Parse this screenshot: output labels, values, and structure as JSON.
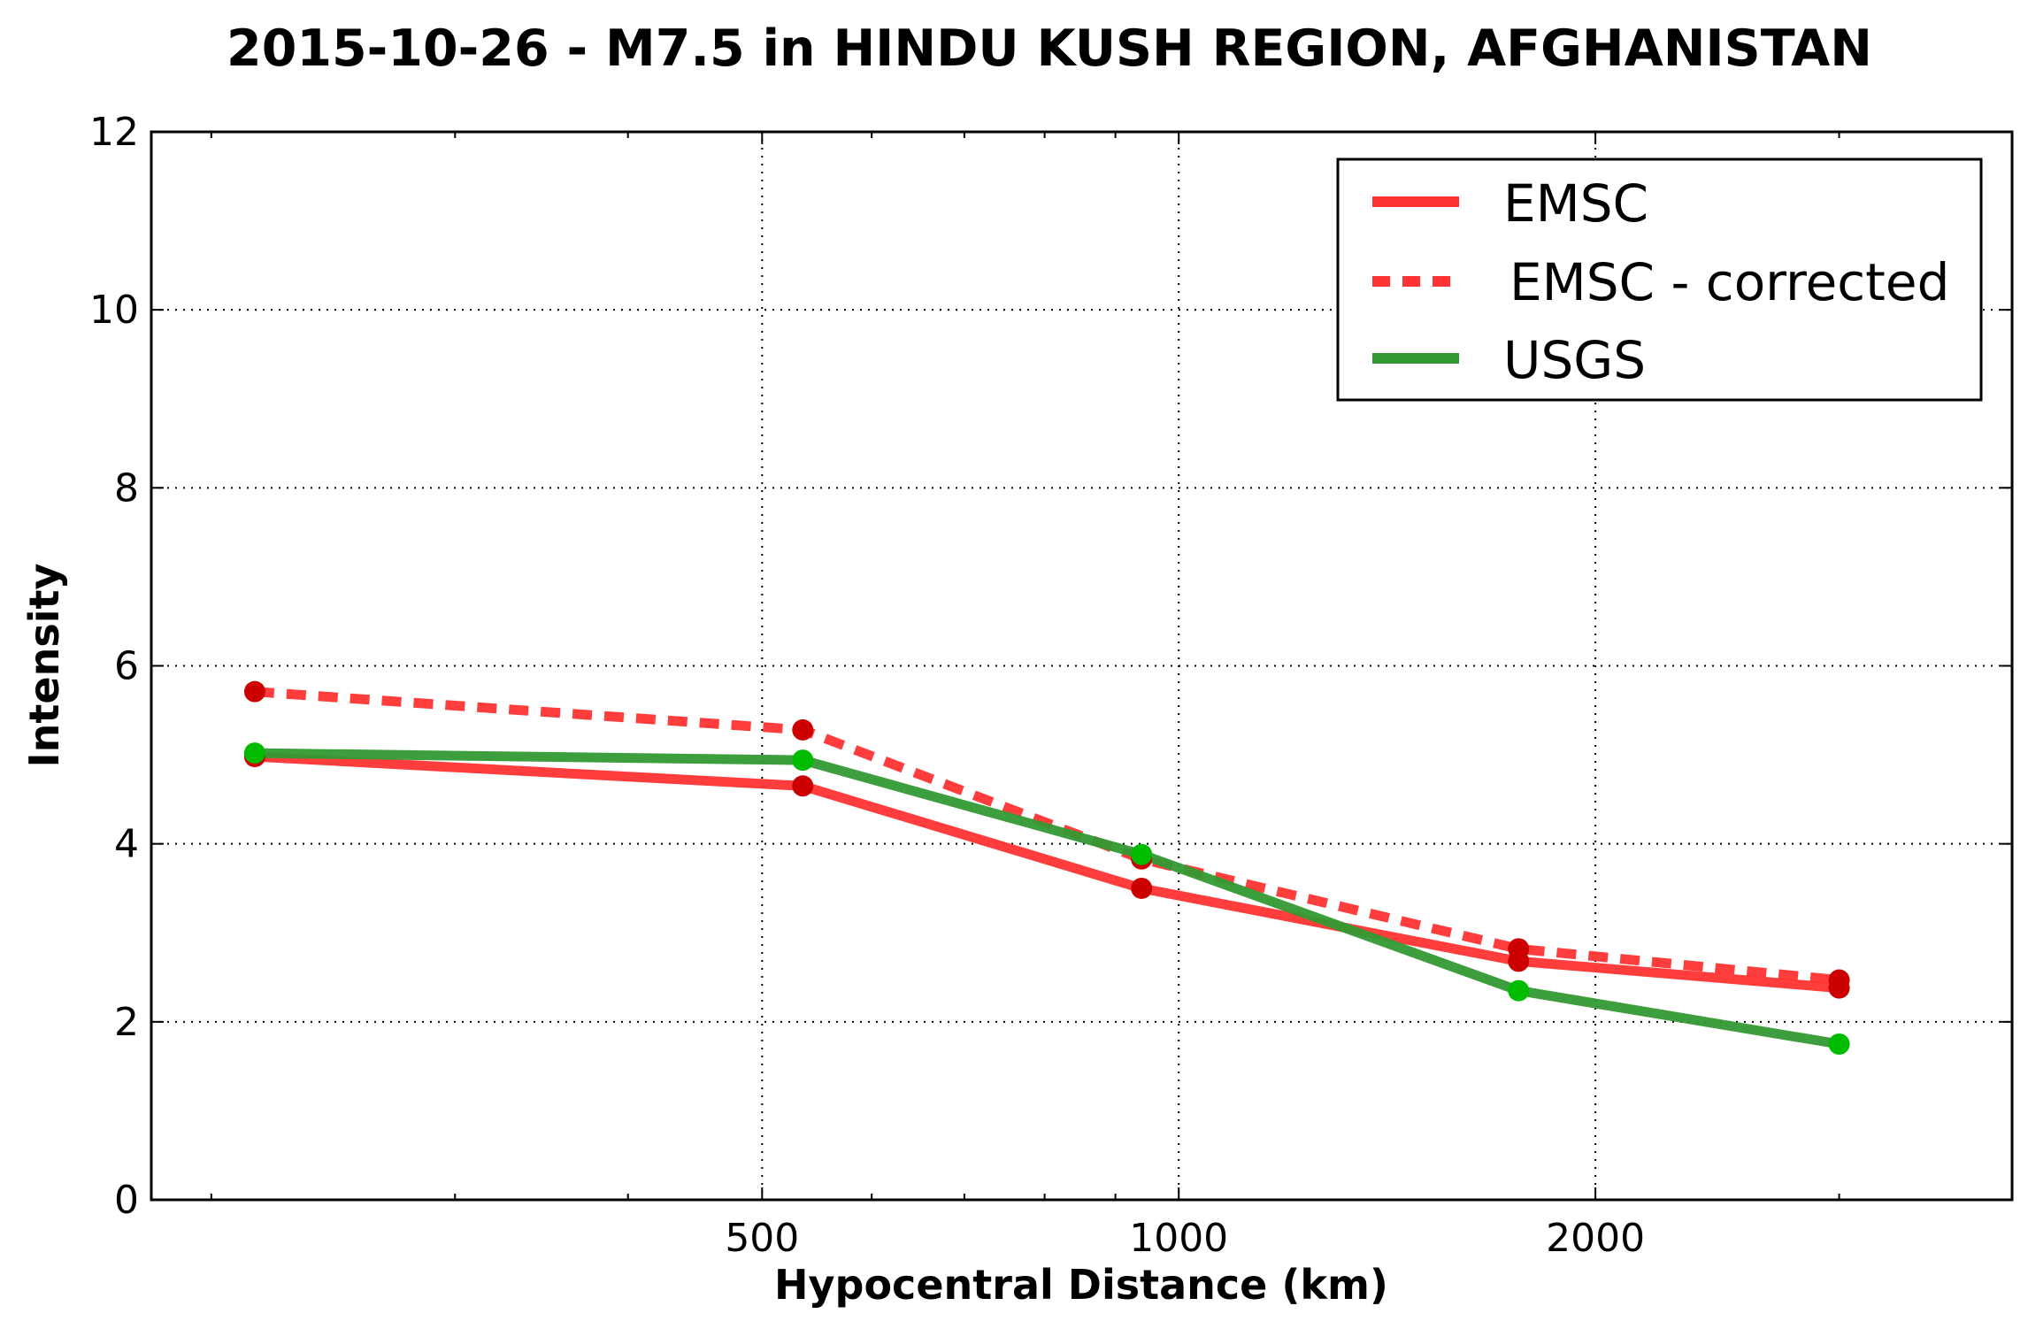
{
  "chart_data": {
    "type": "line",
    "title": "2015-10-26 - M7.5 in HINDU KUSH REGION, AFGHANISTAN",
    "xlabel": "Hypocentral Distance (km)",
    "ylabel": "Intensity",
    "x_scale": "log",
    "xlim": [
      181,
      4000
    ],
    "ylim": [
      0,
      12
    ],
    "x_ticks": [
      500,
      1000,
      2000
    ],
    "x_tick_labels": [
      "500",
      "1000",
      "2000"
    ],
    "y_ticks": [
      0,
      2,
      4,
      6,
      8,
      10,
      12
    ],
    "y_tick_labels": [
      "0",
      "2",
      "4",
      "6",
      "8",
      "10",
      "12"
    ],
    "grid": true,
    "legend_position": "top-right",
    "series": [
      {
        "name": "EMSC",
        "style": "solid",
        "color": "#ff3333",
        "marker_color": "#cc0000",
        "x": [
          215,
          535,
          940,
          1760,
          3000
        ],
        "y": [
          4.98,
          4.65,
          3.5,
          2.68,
          2.38
        ]
      },
      {
        "name": "EMSC - corrected",
        "style": "dashed",
        "color": "#ff3333",
        "marker_color": "#cc0000",
        "x": [
          215,
          535,
          940,
          1760,
          3000
        ],
        "y": [
          5.71,
          5.28,
          3.83,
          2.82,
          2.47
        ]
      },
      {
        "name": "USGS",
        "style": "solid",
        "color": "#339933",
        "marker_color": "#00bb00",
        "x": [
          215,
          535,
          940,
          1760,
          3000
        ],
        "y": [
          5.02,
          4.94,
          3.88,
          2.35,
          1.75
        ]
      }
    ]
  }
}
